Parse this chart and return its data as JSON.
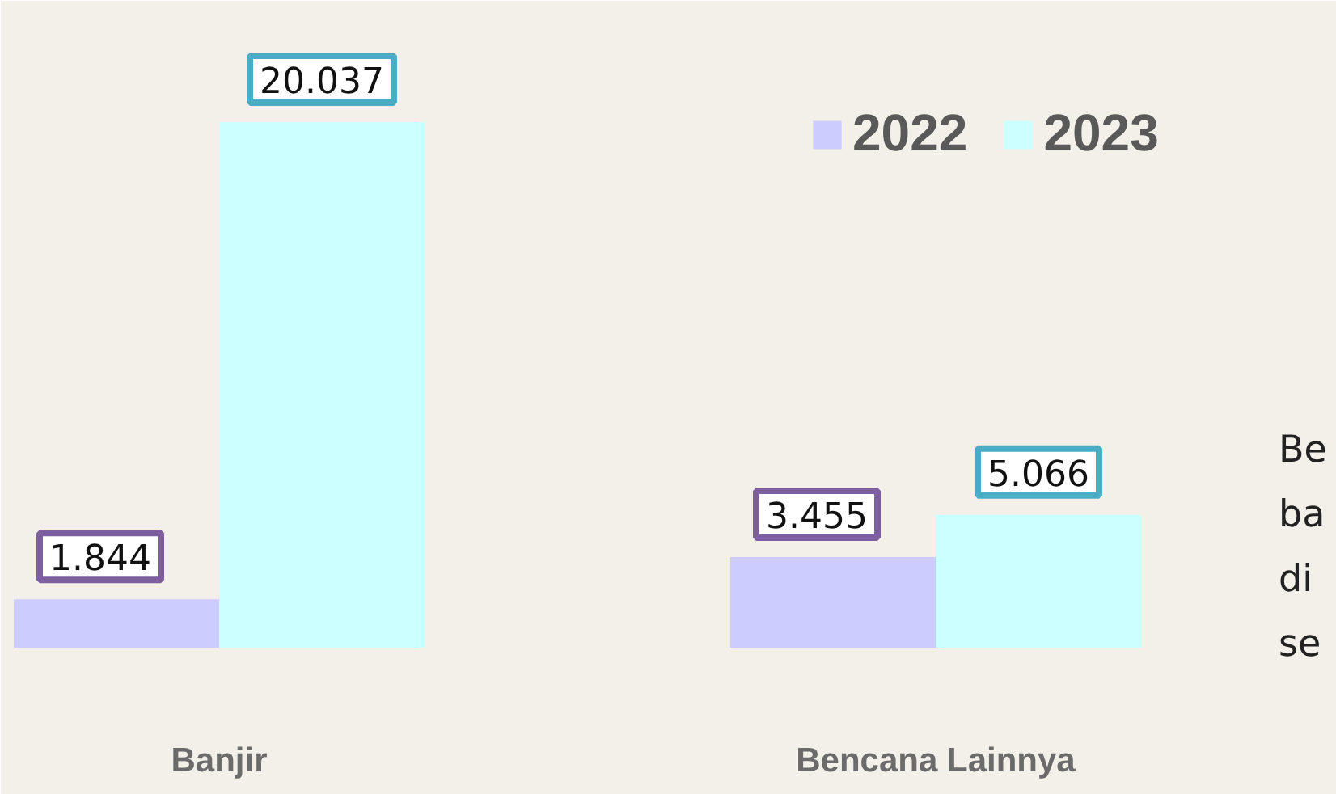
{
  "chart_data": {
    "type": "bar",
    "categories": [
      "Banjir",
      "Bencana Lainnya"
    ],
    "series": [
      {
        "name": "2022",
        "color": "#ccccff",
        "values": [
          1844,
          3455
        ],
        "value_labels": [
          "1.844",
          "3.455"
        ]
      },
      {
        "name": "2023",
        "color": "#ccffff",
        "values": [
          20037,
          5066
        ],
        "value_labels": [
          "20.037",
          "5.066"
        ]
      }
    ],
    "legend": "top right",
    "grid": false,
    "annotations": [
      "Be",
      "ba",
      "di",
      "se"
    ]
  }
}
